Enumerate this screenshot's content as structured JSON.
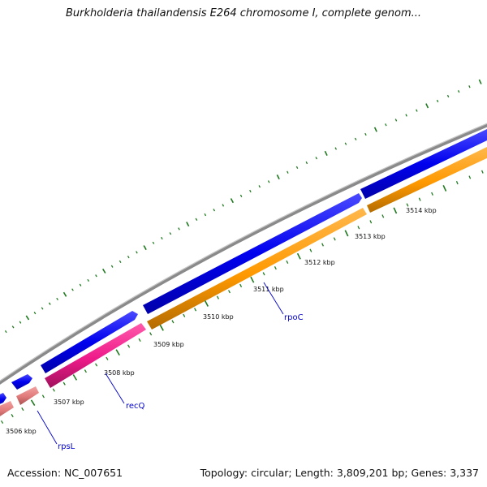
{
  "title": "Burkholderia thailandensis E264 chromosome I, complete genom...",
  "footer": {
    "accession": "Accession: NC_007651",
    "summary": "Topology: circular; Length: 3,809,201 bp; Genes: 3,337"
  },
  "ticks": [
    {
      "label": "3506 kbp"
    },
    {
      "label": "3507 kbp"
    },
    {
      "label": "3508 kbp"
    },
    {
      "label": "3509 kbp"
    },
    {
      "label": "3510 kbp"
    },
    {
      "label": "3511 kbp"
    },
    {
      "label": "3512 kbp"
    },
    {
      "label": "3513 kbp"
    },
    {
      "label": "3514 kbp"
    }
  ],
  "gene_labels": [
    {
      "name": "rpsL"
    },
    {
      "name": "recQ"
    },
    {
      "name": "rpoC"
    }
  ],
  "colors": {
    "backbone": "#8c8c8c",
    "cds": "#0000ee",
    "rpsL": "#e07a7a",
    "recQ": "#ee1a8a",
    "rpoC": "#ff9900",
    "tick": "#1f7a1f",
    "label_line": "#0000cc"
  }
}
